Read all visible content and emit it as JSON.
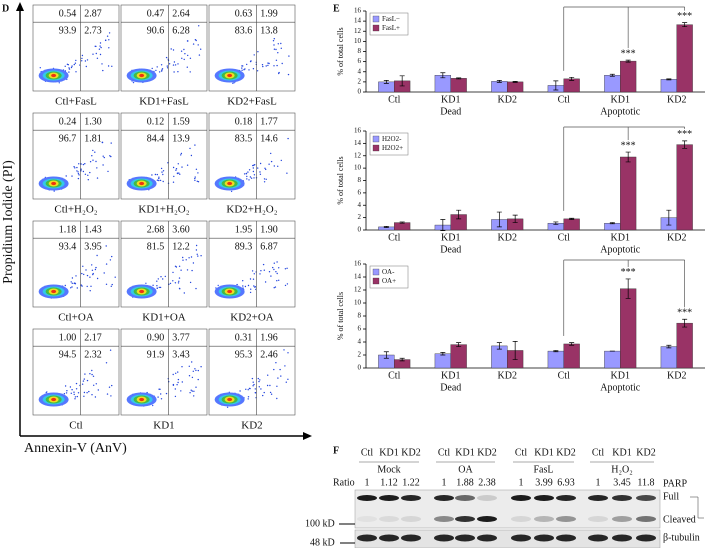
{
  "panel_d": {
    "label": "D",
    "y_axis_label": "Propidium Iodide (PI)",
    "x_axis_label": "Annexin-V (AnV)",
    "plots": [
      {
        "label": "Ctl+FasL",
        "upper_left": "0.54",
        "upper_right": "2.87",
        "lower_left": "93.9",
        "lower_right": "2.73"
      },
      {
        "label": "KD1+FasL",
        "upper_left": "0.47",
        "upper_right": "2.64",
        "lower_left": "90.6",
        "lower_right": "6.28"
      },
      {
        "label": "KD2+FasL",
        "upper_left": "0.63",
        "upper_right": "1.99",
        "lower_left": "83.6",
        "lower_right": "13.8"
      },
      {
        "label": "Ctl+H₂O₂",
        "upper_left": "0.24",
        "upper_right": "1.30",
        "lower_left": "96.7",
        "lower_right": "1.81"
      },
      {
        "label": "KD1+H₂O₂",
        "upper_left": "0.12",
        "upper_right": "1.59",
        "lower_left": "84.4",
        "lower_right": "13.9"
      },
      {
        "label": "KD2+H₂O₂",
        "upper_left": "0.18",
        "upper_right": "1.77",
        "lower_left": "83.5",
        "lower_right": "14.6"
      },
      {
        "label": "Ctl+OA",
        "upper_left": "1.18",
        "upper_right": "1.43",
        "lower_left": "93.4",
        "lower_right": "3.95"
      },
      {
        "label": "KD1+OA",
        "upper_left": "2.68",
        "upper_right": "3.60",
        "lower_left": "81.5",
        "lower_right": "12.2"
      },
      {
        "label": "KD2+OA",
        "upper_left": "1.95",
        "upper_right": "1.90",
        "lower_left": "89.3",
        "lower_right": "6.87"
      },
      {
        "label": "Ctl",
        "upper_left": "1.00",
        "upper_right": "2.17",
        "lower_left": "94.5",
        "lower_right": "2.32"
      },
      {
        "label": "KD1",
        "upper_left": "0.90",
        "upper_right": "3.77",
        "lower_left": "91.9",
        "lower_right": "3.43"
      },
      {
        "label": "KD2",
        "upper_left": "0.31",
        "upper_right": "1.96",
        "lower_left": "95.3",
        "lower_right": "2.46"
      }
    ]
  },
  "panel_e": {
    "label": "E"
  },
  "chart_data": [
    {
      "type": "bar",
      "y_label": "% of total cells",
      "categories": [
        "Ctl",
        "KD1",
        "KD2",
        "Ctl",
        "KD1",
        "KD2"
      ],
      "groups": [
        "Dead",
        "Apoptotic"
      ],
      "ylim": [
        0,
        16
      ],
      "yticks": [
        0,
        2,
        4,
        6,
        8,
        10,
        12,
        14,
        16
      ],
      "legend": "upper left",
      "significance": [
        null,
        null,
        null,
        null,
        "***",
        "***"
      ],
      "series": [
        {
          "name": "FasL−",
          "color": "#9999ff",
          "values": [
            2.0,
            3.3,
            2.1,
            1.3,
            3.3,
            2.5
          ],
          "errors": [
            0.3,
            0.5,
            0.2,
            0.9,
            0.2,
            0.1
          ]
        },
        {
          "name": "FasL+",
          "color": "#993366",
          "values": [
            2.2,
            2.7,
            2.0,
            2.6,
            6.1,
            13.3
          ],
          "errors": [
            1.0,
            0.1,
            0.1,
            0.3,
            0.2,
            0.4
          ]
        }
      ]
    },
    {
      "type": "bar",
      "y_label": "% of total cells",
      "categories": [
        "Ctl",
        "KD1",
        "KD2",
        "Ctl",
        "KD1",
        "KD2"
      ],
      "groups": [
        "Dead",
        "Apoptotic"
      ],
      "ylim": [
        0,
        16
      ],
      "yticks": [
        0,
        2,
        4,
        6,
        8,
        10,
        12,
        14,
        16
      ],
      "legend": "upper left",
      "significance": [
        null,
        null,
        null,
        null,
        "***",
        "***"
      ],
      "series": [
        {
          "name": "H2O2-",
          "color": "#9999ff",
          "values": [
            0.5,
            0.8,
            1.7,
            1.1,
            1.1,
            2.0
          ],
          "errors": [
            0.1,
            0.9,
            1.2,
            0.2,
            0.1,
            1.2
          ]
        },
        {
          "name": "H2O2+",
          "color": "#993366",
          "values": [
            1.2,
            2.5,
            1.8,
            1.8,
            11.8,
            13.8
          ],
          "errors": [
            0.1,
            0.7,
            0.6,
            0.1,
            0.8,
            0.6
          ]
        }
      ]
    },
    {
      "type": "bar",
      "y_label": "% of total cells",
      "categories": [
        "Ctl",
        "KD1",
        "KD2",
        "Ctl",
        "KD1",
        "KD2"
      ],
      "groups": [
        "Dead",
        "Apoptotic"
      ],
      "ylim": [
        0,
        16
      ],
      "yticks": [
        0,
        2,
        4,
        6,
        8,
        10,
        12,
        14,
        16
      ],
      "legend": "upper left",
      "significance": [
        null,
        null,
        null,
        null,
        "***",
        "***"
      ],
      "series": [
        {
          "name": "OA-",
          "color": "#9999ff",
          "values": [
            2.0,
            2.2,
            3.4,
            2.6,
            2.6,
            3.3
          ],
          "errors": [
            0.5,
            0.2,
            0.5,
            0.1,
            0.0,
            0.2
          ]
        },
        {
          "name": "OA+",
          "color": "#993366",
          "values": [
            1.3,
            3.6,
            2.7,
            3.7,
            12.2,
            6.9
          ],
          "errors": [
            0.2,
            0.3,
            1.4,
            0.2,
            1.5,
            0.6
          ]
        }
      ]
    }
  ],
  "panel_f": {
    "label": "F",
    "lanes": [
      "Ctl",
      "KD1",
      "KD2",
      "Ctl",
      "KD1",
      "KD2",
      "Ctl",
      "KD1",
      "KD2",
      "Ctl",
      "KD1",
      "KD2"
    ],
    "groups": [
      "Mock",
      "OA",
      "FasL",
      "H₂O₂"
    ],
    "ratio_label": "Ratio",
    "ratios": [
      1,
      1.12,
      1.22,
      1,
      1.88,
      2.38,
      1,
      3.99,
      6.93,
      1,
      3.45,
      11.8
    ],
    "markers": [
      "100 kD",
      "48 kD"
    ],
    "band_labels": {
      "protein": "PARP",
      "full": "Full",
      "cleaved": "Cleaved",
      "loading": "β-tubulin"
    }
  }
}
